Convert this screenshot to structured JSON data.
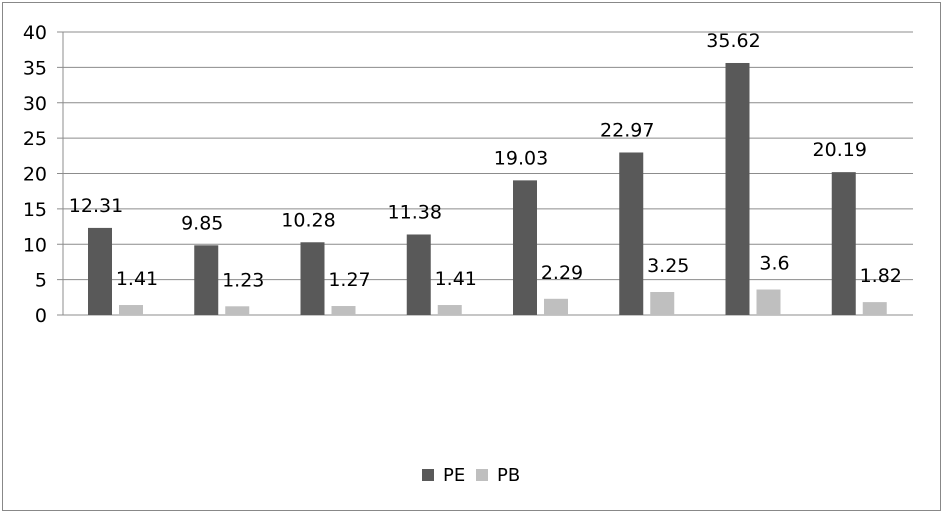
{
  "chart_data": {
    "type": "bar",
    "categories": [
      "",
      "",
      "",
      "",
      "",
      "",
      "",
      ""
    ],
    "series": [
      {
        "name": "PE",
        "values": [
          12.31,
          9.85,
          10.28,
          11.38,
          19.03,
          22.97,
          35.62,
          20.19
        ],
        "color": "#595959"
      },
      {
        "name": "PB",
        "values": [
          1.41,
          1.23,
          1.27,
          1.41,
          2.29,
          3.25,
          3.6,
          1.82
        ],
        "color": "#bfbfbf"
      }
    ],
    "data_labels": {
      "PE": [
        "12.31",
        "9.85",
        "10.28",
        "11.38",
        "19.03",
        "22.97",
        "35.62",
        "20.19"
      ],
      "PB": [
        "1.41",
        "1.23",
        "1.27",
        "1.41",
        "2.29",
        "3.25",
        "3.6",
        "1.82"
      ]
    },
    "y_ticks": [
      "0",
      "5",
      "10",
      "15",
      "20",
      "25",
      "30",
      "35",
      "40"
    ],
    "ylim": [
      0,
      40
    ],
    "grid": true,
    "legend_position": "bottom",
    "title": "",
    "xlabel": "",
    "ylabel": ""
  }
}
